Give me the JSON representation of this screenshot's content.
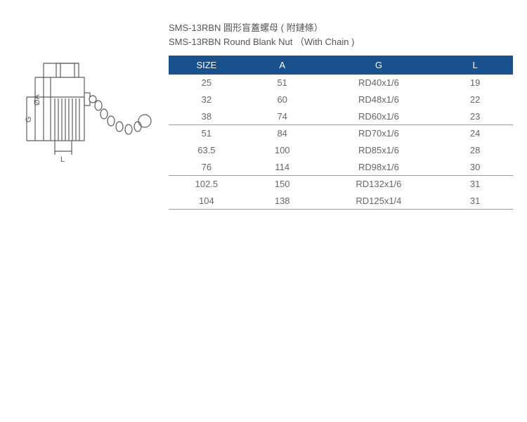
{
  "title_cn": "SMS-13RBN 圓形盲蓋螺母 ( 附鏈條）",
  "title_en": "SMS-13RBN Round Blank Nut  （With Chain )",
  "diagram": {
    "labels": {
      "oa": "ØA",
      "g": "G",
      "l": "L"
    },
    "stroke": "#5c5c5c",
    "fill": "#ffffff"
  },
  "table": {
    "header_bg": "#18518e",
    "header_fg": "#ffffff",
    "cell_fg": "#666666",
    "divider_color": "#999999",
    "columns": [
      "SIZE",
      "A",
      "G",
      "L"
    ],
    "rows": [
      {
        "size": "25",
        "a": "51",
        "g": "RD40x1/6",
        "l": "19",
        "divider": false
      },
      {
        "size": "32",
        "a": "60",
        "g": "RD48x1/6",
        "l": "22",
        "divider": false
      },
      {
        "size": "38",
        "a": "74",
        "g": "RD60x1/6",
        "l": "23",
        "divider": true
      },
      {
        "size": "51",
        "a": "84",
        "g": "RD70x1/6",
        "l": "24",
        "divider": false
      },
      {
        "size": "63.5",
        "a": "100",
        "g": "RD85x1/6",
        "l": "28",
        "divider": false
      },
      {
        "size": "76",
        "a": "114",
        "g": "RD98x1/6",
        "l": "30",
        "divider": true
      },
      {
        "size": "102.5",
        "a": "150",
        "g": "RD132x1/6",
        "l": "31",
        "divider": false
      },
      {
        "size": "104",
        "a": "138",
        "g": "RD125x1/4",
        "l": "31",
        "divider": true
      }
    ]
  }
}
